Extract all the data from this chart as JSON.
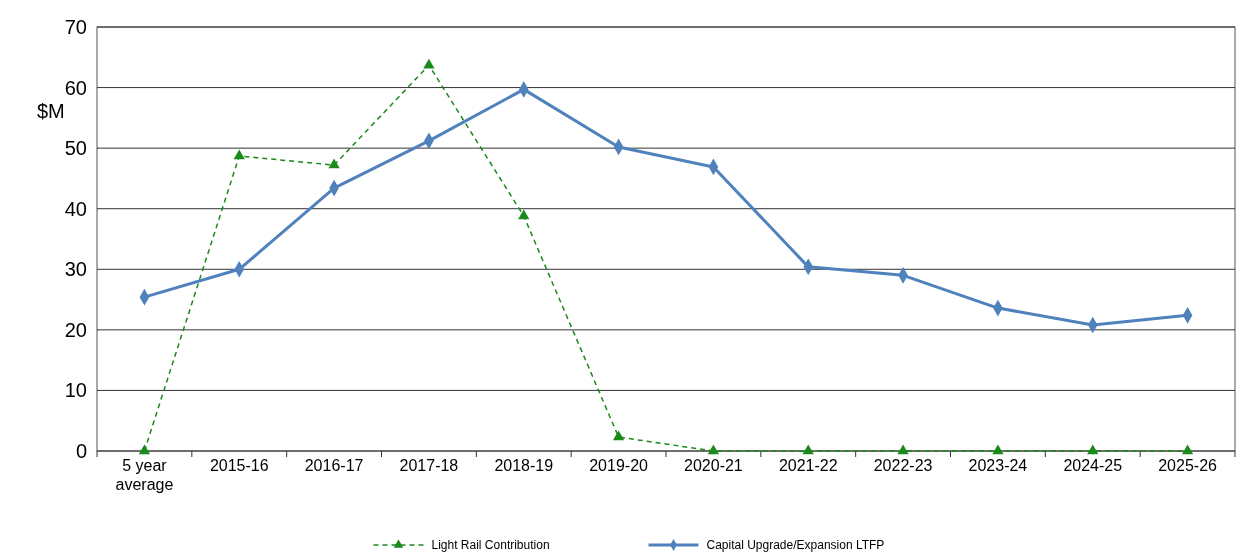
{
  "chart_data": {
    "type": "line",
    "ylabel": "$M",
    "categories": [
      "5 year\naverage",
      "2015-16",
      "2016-17",
      "2017-18",
      "2018-19",
      "2019-20",
      "2020-21",
      "2021-22",
      "2022-23",
      "2023-24",
      "2024-25",
      "2025-26"
    ],
    "series": [
      {
        "name": "Light Rail Contribution",
        "color": "#1a8a1a",
        "marker": "triangle",
        "line_style": "dashed",
        "values": [
          0,
          48.7,
          47.2,
          63.7,
          38.8,
          2.3,
          0,
          0,
          0,
          0,
          0,
          0
        ]
      },
      {
        "name": "Capital Upgrade/Expansion LTFP",
        "color": "#4f81bd",
        "marker": "diamond",
        "line_style": "solid",
        "values": [
          25.4,
          30.0,
          43.4,
          51.2,
          59.7,
          50.2,
          46.9,
          30.4,
          29.0,
          23.6,
          20.8,
          22.4
        ]
      }
    ],
    "ylim": [
      0,
      70
    ],
    "yticks": [
      0,
      10,
      20,
      30,
      40,
      50,
      60,
      70
    ],
    "grid": "y",
    "legend": "bottom"
  }
}
